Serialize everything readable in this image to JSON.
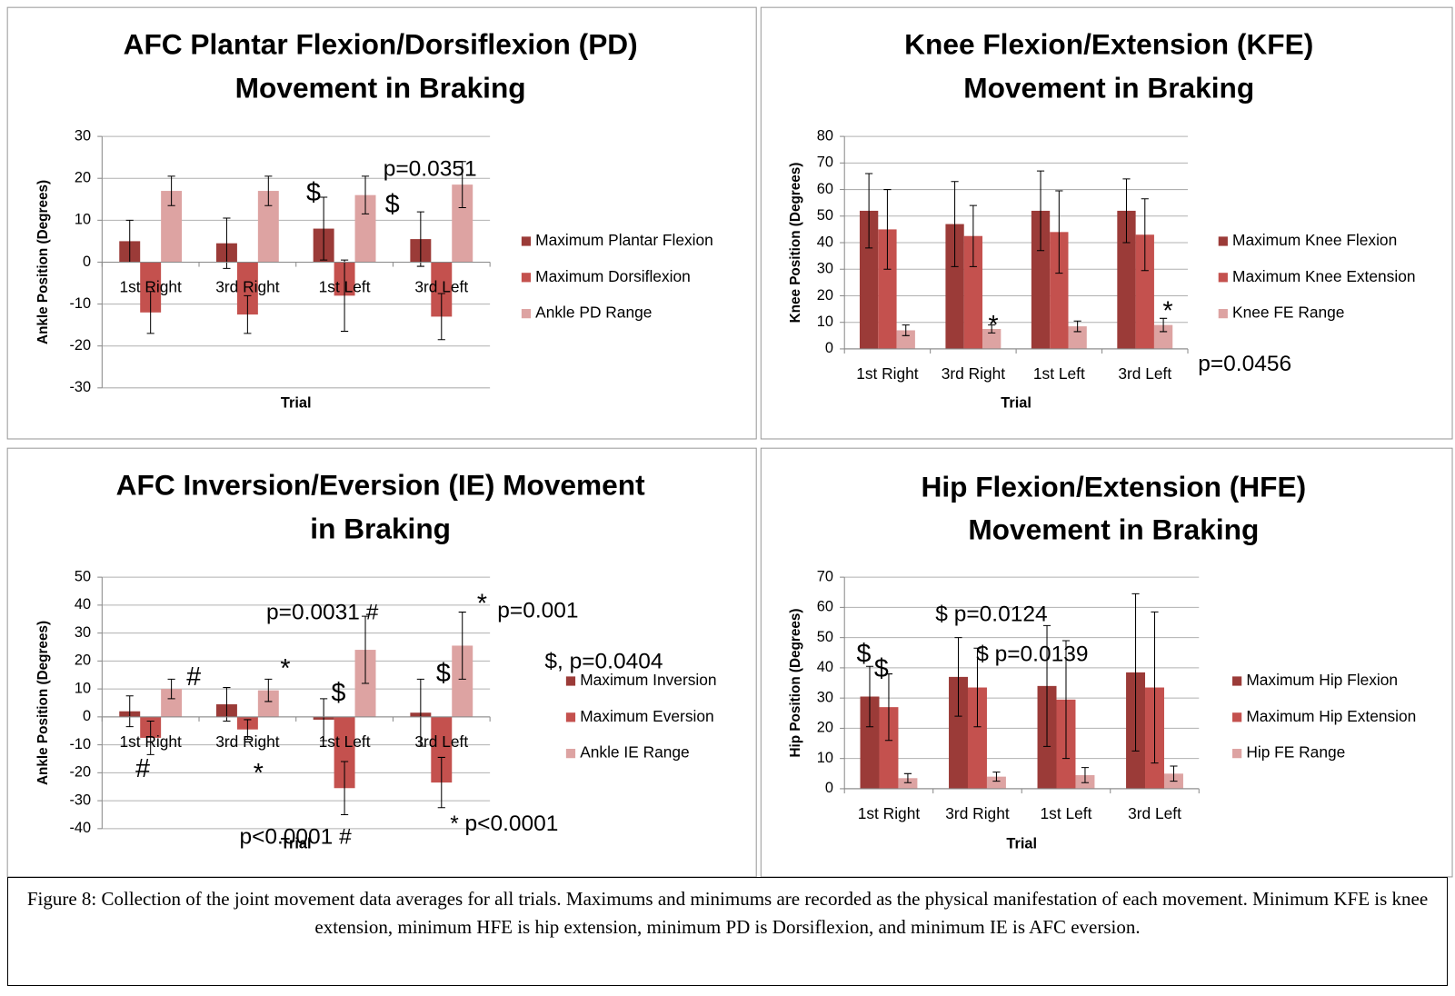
{
  "chart_data": [
    {
      "type": "bar",
      "title": [
        "AFC Plantar Flexion/Dorsiflexion (PD)",
        "Movement in Braking"
      ],
      "x_label": "Trial",
      "y_label": "Ankle Position (Degrees)",
      "categories": [
        "1st Right",
        "3rd Right",
        "1st Left",
        "3rd Left"
      ],
      "series": [
        {
          "name": "Maximum Plantar Flexion",
          "color": "#9b3b38",
          "values": [
            5,
            4.5,
            8,
            5.5
          ],
          "errors": [
            5,
            6,
            7.5,
            6.5
          ]
        },
        {
          "name": "Maximum Dorsiflexion",
          "color": "#c4514e",
          "values": [
            -12,
            -12.5,
            -8,
            -13
          ],
          "errors": [
            5,
            4.5,
            8.5,
            5.5
          ]
        },
        {
          "name": "Ankle PD Range",
          "color": "#dda3a2",
          "values": [
            17,
            17,
            16,
            18.5
          ],
          "errors": [
            3.5,
            3.5,
            4.5,
            5.5
          ]
        }
      ],
      "ylim": [
        -30,
        30
      ],
      "yticks": [
        -30,
        -20,
        -10,
        0,
        10,
        20,
        30
      ],
      "grid": true,
      "legend": "right",
      "annotations": [
        "p=0.0351",
        "$",
        "$"
      ]
    },
    {
      "type": "bar",
      "title": [
        "Knee Flexion/Extension (KFE)",
        "Movement in Braking"
      ],
      "x_label": "Trial",
      "y_label": "Knee Position (Degrees)",
      "categories": [
        "1st Right",
        "3rd Right",
        "1st Left",
        "3rd Left"
      ],
      "series": [
        {
          "name": "Maximum Knee Flexion",
          "color": "#9b3b38",
          "values": [
            52,
            47,
            52,
            52
          ],
          "errors": [
            14,
            16,
            15,
            12
          ]
        },
        {
          "name": "Maximum Knee Extension",
          "color": "#c4514e",
          "values": [
            45,
            42.5,
            44,
            43
          ],
          "errors": [
            15,
            11.5,
            15.5,
            13.5
          ]
        },
        {
          "name": "Knee FE Range",
          "color": "#dda3a2",
          "values": [
            7,
            7.5,
            8.5,
            9
          ],
          "errors": [
            2,
            1.5,
            2,
            2.5
          ]
        }
      ],
      "ylim": [
        0,
        80
      ],
      "yticks": [
        0,
        10,
        20,
        30,
        40,
        50,
        60,
        70,
        80
      ],
      "grid": true,
      "legend": "right",
      "annotations": [
        "*",
        "*",
        "p=0.0456"
      ]
    },
    {
      "type": "bar",
      "title": [
        "AFC Inversion/Eversion (IE) Movement",
        "in Braking"
      ],
      "x_label": "Trial",
      "y_label": "Ankle Position (Degrees)",
      "categories": [
        "1st Right",
        "3rd Right",
        "1st Left",
        "3rd Left"
      ],
      "series": [
        {
          "name": "Maximum Inversion",
          "color": "#9b3b38",
          "values": [
            2,
            4.5,
            -1,
            1.5
          ],
          "errors": [
            5.5,
            6,
            7.5,
            12
          ]
        },
        {
          "name": "Maximum Eversion",
          "color": "#c4514e",
          "values": [
            -7.5,
            -4.5,
            -25.5,
            -23.5
          ],
          "errors": [
            6,
            3.5,
            9.5,
            9
          ]
        },
        {
          "name": "Ankle IE Range",
          "color": "#dda3a2",
          "values": [
            10,
            9.5,
            24,
            25.5
          ],
          "errors": [
            3.5,
            4,
            12,
            12
          ]
        }
      ],
      "ylim": [
        -40,
        50
      ],
      "yticks": [
        -40,
        -30,
        -20,
        -10,
        0,
        10,
        20,
        30,
        40,
        50
      ],
      "grid": true,
      "legend": "right",
      "annotations": [
        "#",
        "#",
        "*",
        "*",
        "p=0.0031 #",
        "$",
        "$",
        "*",
        "p=0.001",
        "$, p=0.0404",
        "p<0.0001 #",
        "* p<0.0001"
      ]
    },
    {
      "type": "bar",
      "title": [
        "Hip Flexion/Extension (HFE)",
        "Movement in Braking"
      ],
      "x_label": "Trial",
      "y_label": "Hip Position (Degrees)",
      "categories": [
        "1st Right",
        "3rd Right",
        "1st Left",
        "3rd Left"
      ],
      "series": [
        {
          "name": "Maximum Hip Flexion",
          "color": "#9b3b38",
          "values": [
            30.5,
            37,
            34,
            38.5
          ],
          "errors": [
            10,
            13,
            20,
            26
          ]
        },
        {
          "name": "Maximum Hip Extension",
          "color": "#c4514e",
          "values": [
            27,
            33.5,
            29.5,
            33.5
          ],
          "errors": [
            11,
            13,
            19.5,
            25
          ]
        },
        {
          "name": "Hip FE Range",
          "color": "#dda3a2",
          "values": [
            3.5,
            4,
            4.5,
            5
          ],
          "errors": [
            1.5,
            1.5,
            2.5,
            2.5
          ]
        }
      ],
      "ylim": [
        0,
        70
      ],
      "yticks": [
        0,
        10,
        20,
        30,
        40,
        50,
        60,
        70
      ],
      "grid": true,
      "legend": "right",
      "annotations": [
        "$",
        "$",
        "$ p=0.0124",
        "$ p=0.0139"
      ]
    }
  ],
  "caption": "Figure 8: Collection of the joint movement data averages for all trials. Maximums and minimums are recorded as the physical manifestation of each movement. Minimum KFE is knee extension, minimum HFE is hip extension, minimum PD is Dorsiflexion, and minimum IE is AFC eversion."
}
